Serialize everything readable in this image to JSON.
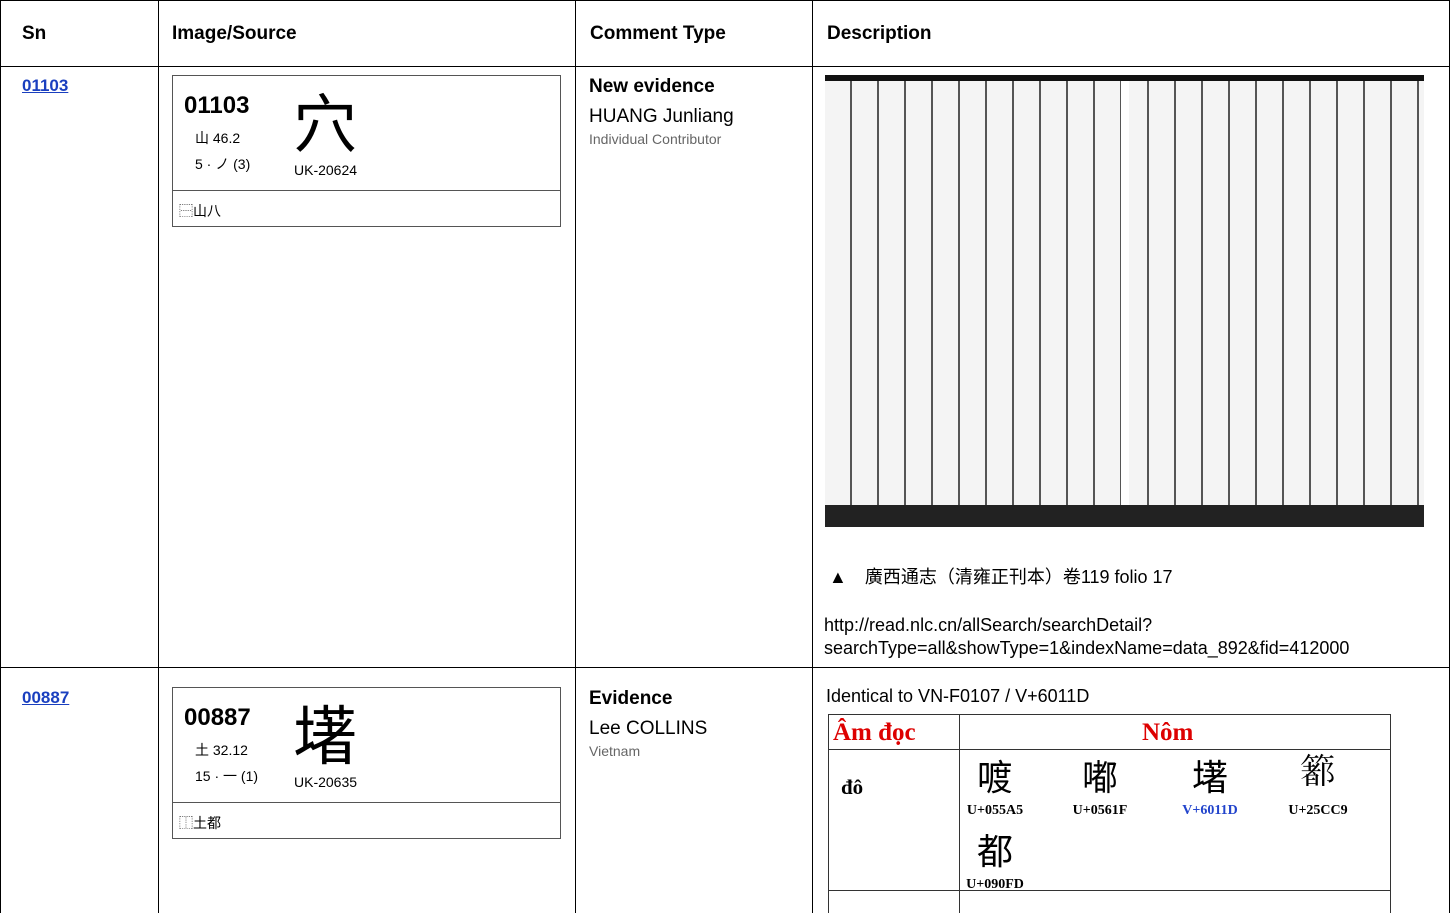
{
  "table": {
    "headers": [
      "Sn",
      "Image/Source",
      "Comment Type",
      "Description"
    ],
    "rows": [
      {
        "sn": "01103",
        "card": {
          "code": "01103",
          "glyph": "穴",
          "radical": "山 46.2",
          "strokes": "5 · ノ (3)",
          "source": "UK-20624",
          "ids": "⿱山八"
        },
        "comment": {
          "type": "New evidence",
          "author": "HUANG Junliang",
          "affiliation": "Individual Contributor"
        },
        "description": {
          "caption": "▲　廣西通志（清雍正刊本）卷119 folio 17",
          "url": [
            "http://read.nlc.cn/allSearch/searchDetail?",
            "searchType=all&showType=1&indexName=data_892&fid=412000"
          ]
        }
      },
      {
        "sn": "00887",
        "card": {
          "code": "00887",
          "glyph": "墸",
          "radical": "土 32.12",
          "strokes": "15 · 一 (1)",
          "source": "UK-20635",
          "ids": "⿰土都"
        },
        "comment": {
          "type": "Evidence",
          "author": "Lee COLLINS",
          "affiliation": "Vietnam"
        },
        "description": {
          "text": "Identical to VN-F0107 / V+6011D",
          "nom_table": {
            "headers": [
              "Âm đọc",
              "Nôm"
            ],
            "reading": "đô",
            "glyphs": [
              {
                "char": "喥",
                "code": "U+055A5"
              },
              {
                "char": "嘟",
                "code": "U+0561F"
              },
              {
                "char": "墸",
                "code": "V+6011D"
              },
              {
                "char": "𥳉",
                "code": "U+25CC9"
              },
              {
                "char": "都",
                "code": "U+090FD"
              }
            ]
          }
        }
      }
    ]
  }
}
